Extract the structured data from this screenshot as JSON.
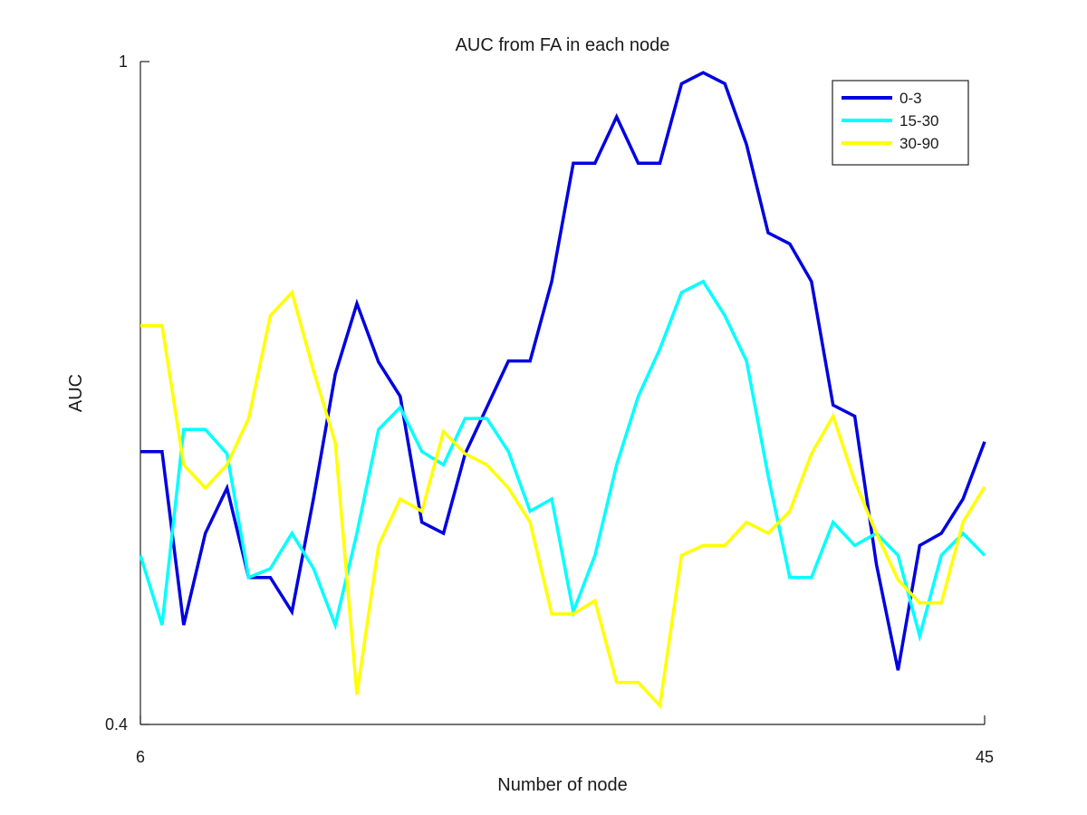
{
  "chart_data": {
    "type": "line",
    "title": "AUC from FA in each node",
    "xlabel": "Number of node",
    "ylabel": "AUC",
    "xlim": [
      6,
      45
    ],
    "ylim": [
      0.4,
      1
    ],
    "xticks": [
      6,
      45
    ],
    "xtick_labels": [
      "6",
      "45"
    ],
    "yticks": [
      0.4,
      1
    ],
    "ytick_labels": [
      "0.4",
      "1"
    ],
    "grid": false,
    "legend": "top-right",
    "x": [
      6,
      7,
      8,
      9,
      10,
      11,
      12,
      13,
      14,
      15,
      16,
      17,
      18,
      19,
      20,
      21,
      22,
      23,
      24,
      25,
      26,
      27,
      28,
      29,
      30,
      31,
      32,
      33,
      34,
      35,
      36,
      37,
      38,
      39,
      40,
      41,
      42,
      43,
      44,
      45
    ],
    "series": [
      {
        "name": "0-3",
        "color": "#0000e0",
        "values": [
          0.647,
          0.647,
          0.49,
          0.573,
          0.614,
          0.533,
          0.533,
          0.502,
          0.605,
          0.717,
          0.781,
          0.728,
          0.697,
          0.583,
          0.573,
          0.645,
          0.687,
          0.729,
          0.729,
          0.801,
          0.908,
          0.908,
          0.95,
          0.908,
          0.908,
          0.98,
          0.99,
          0.98,
          0.925,
          0.845,
          0.835,
          0.801,
          0.689,
          0.679,
          0.545,
          0.449,
          0.562,
          0.573,
          0.604,
          0.656
        ]
      },
      {
        "name": "15-30",
        "color": "#00ffff",
        "values": [
          0.553,
          0.49,
          0.667,
          0.667,
          0.645,
          0.533,
          0.541,
          0.573,
          0.541,
          0.49,
          0.573,
          0.667,
          0.687,
          0.647,
          0.635,
          0.677,
          0.677,
          0.647,
          0.593,
          0.604,
          0.502,
          0.553,
          0.635,
          0.697,
          0.74,
          0.791,
          0.801,
          0.77,
          0.729,
          0.625,
          0.533,
          0.533,
          0.583,
          0.562,
          0.573,
          0.553,
          0.48,
          0.553,
          0.573,
          0.553
        ]
      },
      {
        "name": "30-90",
        "color": "#ffff00",
        "values": [
          0.761,
          0.761,
          0.635,
          0.614,
          0.635,
          0.677,
          0.77,
          0.791,
          0.72,
          0.655,
          0.427,
          0.562,
          0.604,
          0.593,
          0.665,
          0.645,
          0.635,
          0.614,
          0.583,
          0.5,
          0.5,
          0.512,
          0.438,
          0.438,
          0.417,
          0.553,
          0.562,
          0.562,
          0.583,
          0.573,
          0.593,
          0.645,
          0.679,
          0.62,
          0.573,
          0.531,
          0.51,
          0.51,
          0.583,
          0.615
        ]
      }
    ]
  }
}
